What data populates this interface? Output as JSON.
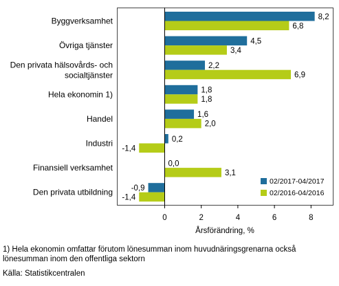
{
  "chart_data": {
    "type": "bar",
    "orientation": "horizontal",
    "categories": [
      "Byggverksamhet",
      "Övriga tjänster",
      "Den privata hälsovårds- och socialtjänster",
      "Hela ekonomin 1)",
      "Handel",
      "Industri",
      "Finansiell verksamhet",
      "Den privata utbildning"
    ],
    "category_lines": [
      [
        "Byggverksamhet"
      ],
      [
        "Övriga tjänster"
      ],
      [
        "Den privata hälsovårds- och",
        "socialtjänster"
      ],
      [
        "Hela ekonomin 1)"
      ],
      [
        "Handel"
      ],
      [
        "Industri"
      ],
      [
        "Finansiell verksamhet"
      ],
      [
        "Den privata utbildning"
      ]
    ],
    "series": [
      {
        "name": "02/2017-04/2017",
        "color": "#1f6e9c",
        "values": [
          8.2,
          4.5,
          2.2,
          1.8,
          1.6,
          0.2,
          0.0,
          -0.9
        ],
        "labels": [
          "8,2",
          "4,5",
          "2,2",
          "1,8",
          "1,6",
          "0,2",
          "0,0",
          "-0,9"
        ]
      },
      {
        "name": "02/2016-04/2016",
        "color": "#b5cc18",
        "values": [
          6.8,
          3.4,
          6.9,
          1.8,
          2.0,
          -1.4,
          3.1,
          -1.4
        ],
        "labels": [
          "6,8",
          "3,4",
          "6,9",
          "1,8",
          "2,0",
          "-1,4",
          "3,1",
          "-1,4"
        ]
      }
    ],
    "xlabel": "Årsförändring, %",
    "xlim": [
      -2.5,
      9
    ],
    "ticks": [
      0,
      2,
      4,
      6,
      8
    ],
    "tick_labels": [
      "0",
      "2",
      "4",
      "6",
      "8"
    ],
    "grid": false,
    "legend_position": "bottom-right"
  },
  "footnotes": {
    "line1": "1) Hela ekonomin omfattar förutom lönesumman inom huvudnäringsgrenarna också",
    "line2": "lönesumman inom den offentliga sektorn",
    "source": "Källa: Statistikcentralen"
  }
}
